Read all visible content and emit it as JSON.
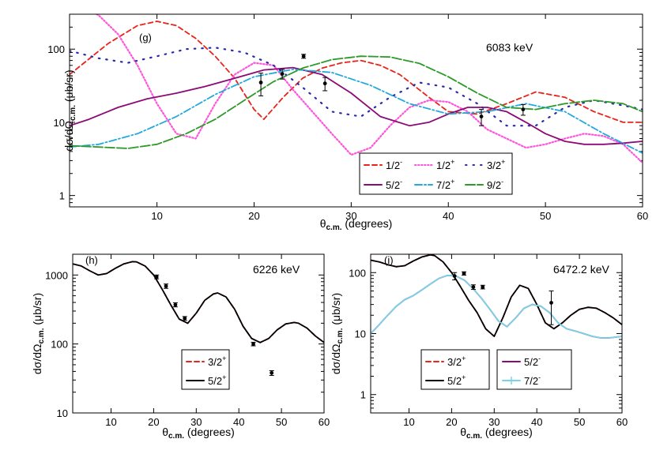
{
  "chart_data": [
    {
      "type": "line",
      "panel_label": "(g)",
      "annotation": "6083 keV",
      "xlabel_main": "θ",
      "xlabel_sub": "c.m.",
      "xlabel_tail": " (degrees)",
      "ylabel_main": "dσ/dΩ",
      "ylabel_sub": "c.m.",
      "ylabel_tail": " (μb/sr)",
      "xlim": [
        1,
        60
      ],
      "ylim": [
        0.7,
        300
      ],
      "yscale": "log",
      "xticks": [
        10,
        20,
        30,
        40,
        50,
        60
      ],
      "yticks": [
        1,
        10,
        100
      ],
      "legend_position": "lower-right",
      "legend_columns": 3,
      "series": [
        {
          "name": "1/2",
          "sup": "-",
          "color": "#e8231c",
          "style": "dashed",
          "x": [
            1,
            5,
            8,
            10,
            12,
            14,
            16,
            18,
            20,
            21,
            23,
            25,
            27,
            29,
            31,
            33,
            35,
            38,
            40,
            43,
            46,
            49,
            52,
            55,
            58,
            60
          ],
          "y": [
            45,
            120,
            210,
            240,
            210,
            140,
            80,
            40,
            15,
            11,
            22,
            40,
            55,
            65,
            70,
            60,
            45,
            22,
            14,
            13,
            18,
            26,
            22,
            14,
            10,
            10
          ]
        },
        {
          "name": "1/2",
          "sup": "+",
          "color": "#ff55dd",
          "style": "dotted",
          "x": [
            1,
            4,
            6,
            8,
            10,
            12,
            14,
            16,
            18,
            20,
            22,
            24,
            26,
            28,
            30,
            32,
            34,
            36,
            38,
            40,
            42,
            44,
            46,
            48,
            50,
            52,
            54,
            56,
            58,
            60
          ],
          "y": [
            500,
            290,
            160,
            60,
            18,
            7,
            6,
            18,
            45,
            65,
            60,
            28,
            14,
            7,
            3.6,
            4.5,
            9,
            16,
            20,
            19,
            14,
            8,
            6,
            4.5,
            5,
            6,
            7,
            6.5,
            5,
            2.8
          ]
        },
        {
          "name": "3/2",
          "sup": "+",
          "color": "#2a2aa8",
          "style": "sparse-dot",
          "x": [
            1,
            4,
            7,
            10,
            13,
            16,
            19,
            22,
            25,
            28,
            31,
            34,
            37,
            40,
            43,
            46,
            49,
            52,
            55,
            58,
            60
          ],
          "y": [
            95,
            75,
            65,
            80,
            100,
            105,
            90,
            60,
            30,
            14,
            12,
            22,
            35,
            30,
            18,
            9,
            9,
            16,
            20,
            17,
            15
          ]
        },
        {
          "name": "5/2",
          "sup": "-",
          "color": "#8b0a76",
          "style": "solid",
          "x": [
            1,
            3,
            6,
            9,
            12,
            15,
            18,
            21,
            24,
            27,
            30,
            33,
            36,
            38,
            40,
            42,
            44,
            46,
            48,
            50,
            52,
            54,
            56,
            58,
            60
          ],
          "y": [
            9,
            11,
            16,
            21,
            25,
            31,
            40,
            52,
            56,
            45,
            25,
            12,
            9,
            10,
            13,
            16,
            16,
            14,
            10,
            7,
            5.5,
            5,
            5,
            5.2,
            5.5
          ]
        },
        {
          "name": "7/2",
          "sup": "+",
          "color": "#22aadd",
          "style": "dashdot",
          "x": [
            1,
            4,
            8,
            12,
            16,
            20,
            24,
            28,
            32,
            36,
            40,
            44,
            48,
            52,
            56,
            60
          ],
          "y": [
            4.6,
            5,
            7,
            12,
            24,
            42,
            53,
            48,
            32,
            18,
            13,
            14,
            18,
            14,
            7,
            3.8
          ]
        },
        {
          "name": "9/2",
          "sup": "-",
          "color": "#2e9a2a",
          "style": "longdash",
          "x": [
            1,
            4,
            7,
            10,
            13,
            16,
            19,
            22,
            25,
            28,
            31,
            34,
            37,
            40,
            43,
            46,
            49,
            52,
            55,
            58,
            60
          ],
          "y": [
            4.8,
            4.6,
            4.4,
            5,
            7,
            11,
            20,
            36,
            55,
            72,
            80,
            78,
            64,
            42,
            25,
            16,
            15,
            18,
            20,
            18,
            14
          ]
        }
      ],
      "points": {
        "x": [
          20.7,
          22.9,
          25.1,
          27.3,
          43.4,
          47.7
        ],
        "y": [
          35,
          46,
          80,
          34,
          12,
          15
        ],
        "yerr": [
          12,
          7,
          5,
          7,
          3,
          2.5
        ]
      }
    },
    {
      "type": "line",
      "panel_label": "(h)",
      "annotation": "6226 keV",
      "xlabel_main": "θ",
      "xlabel_sub": "c.m.",
      "xlabel_tail": " (degrees)",
      "ylabel_main": "dσ/dΩ",
      "ylabel_sub": "c.m.",
      "ylabel_tail": " (μb/sr)",
      "xlim": [
        1,
        60
      ],
      "ylim": [
        10,
        2000
      ],
      "yscale": "log",
      "xticks": [
        10,
        20,
        30,
        40,
        50,
        60
      ],
      "yticks": [
        10,
        100,
        1000
      ],
      "legend_position": "lower-center",
      "legend_columns": 1,
      "series": [
        {
          "name": "3/2",
          "sup": "+",
          "color": "#e8231c",
          "style": "dashed",
          "x": [
            1,
            3,
            5,
            7,
            9,
            11,
            13,
            15,
            16,
            18,
            20,
            22,
            24,
            26,
            28,
            30,
            32,
            34,
            35,
            37,
            39,
            41,
            43,
            45,
            47,
            49,
            51,
            53,
            54,
            56,
            58,
            60
          ],
          "y": [
            1450,
            1350,
            1150,
            1000,
            1050,
            1250,
            1450,
            1560,
            1550,
            1350,
            1000,
            620,
            370,
            230,
            200,
            280,
            430,
            530,
            550,
            480,
            320,
            180,
            120,
            105,
            120,
            160,
            195,
            205,
            200,
            170,
            130,
            105
          ]
        },
        {
          "name": "5/2",
          "sup": "+",
          "color": "#000000",
          "style": "solid",
          "x": [
            1,
            3,
            5,
            7,
            9,
            11,
            13,
            15,
            16,
            18,
            20,
            22,
            24,
            26,
            28,
            30,
            32,
            34,
            35,
            37,
            39,
            41,
            43,
            45,
            47,
            49,
            51,
            53,
            54,
            56,
            58,
            60
          ],
          "y": [
            1450,
            1350,
            1150,
            1000,
            1050,
            1250,
            1450,
            1560,
            1550,
            1350,
            1000,
            620,
            370,
            230,
            200,
            280,
            430,
            530,
            550,
            480,
            320,
            180,
            120,
            105,
            120,
            160,
            195,
            205,
            200,
            170,
            130,
            105
          ]
        }
      ],
      "points": {
        "x": [
          20.7,
          22.9,
          25.1,
          27.3,
          43.4,
          47.7
        ],
        "y": [
          940,
          690,
          370,
          235,
          100,
          38
        ],
        "yerr": [
          60,
          50,
          25,
          15,
          6,
          3
        ]
      }
    },
    {
      "type": "line",
      "panel_label": "(i)",
      "annotation": "6472.2 keV",
      "xlabel_main": "θ",
      "xlabel_sub": "c.m.",
      "xlabel_tail": " (degrees)",
      "ylabel_main": "dσ/dΩ",
      "ylabel_sub": "c.m.",
      "ylabel_tail": " (μb/sr)",
      "xlim": [
        1,
        60
      ],
      "ylim": [
        0.5,
        200
      ],
      "yscale": "log",
      "xticks": [
        10,
        20,
        30,
        40,
        50,
        60
      ],
      "yticks": [
        1,
        10,
        100
      ],
      "legend_position": "lower-left",
      "legend_columns": 2,
      "series": [
        {
          "name": "3/2",
          "sup": "+",
          "color": "#e8231c",
          "style": "dashed",
          "x": [
            1,
            3,
            5,
            7,
            9,
            11,
            13,
            15,
            16,
            18,
            20,
            22,
            24,
            26,
            28,
            30,
            32,
            34,
            36,
            38,
            40,
            42,
            44,
            46,
            48,
            50,
            52,
            54,
            56,
            58,
            60
          ],
          "y": [
            160,
            150,
            135,
            125,
            130,
            155,
            180,
            195,
            190,
            150,
            100,
            60,
            35,
            22,
            12,
            9,
            18,
            40,
            62,
            55,
            30,
            15,
            12,
            15,
            20,
            25,
            27,
            26,
            22,
            18,
            14
          ]
        },
        {
          "name": "5/2",
          "sup": "+",
          "color": "#000000",
          "style": "solid",
          "x": [
            1,
            3,
            5,
            7,
            9,
            11,
            13,
            15,
            16,
            18,
            20,
            22,
            24,
            26,
            28,
            30,
            32,
            34,
            36,
            38,
            40,
            42,
            44,
            46,
            48,
            50,
            52,
            54,
            56,
            58,
            60
          ],
          "y": [
            160,
            150,
            135,
            125,
            130,
            155,
            180,
            195,
            190,
            150,
            100,
            60,
            35,
            22,
            12,
            9,
            18,
            40,
            62,
            55,
            30,
            15,
            12,
            15,
            20,
            25,
            27,
            26,
            22,
            18,
            14
          ]
        },
        {
          "name": "5/2",
          "sup": "-",
          "color": "#8b0a76",
          "style": "solid",
          "x": [
            1,
            3,
            5,
            7,
            9,
            11,
            13,
            15,
            17,
            19,
            21,
            23,
            25,
            27,
            29,
            31,
            33,
            35,
            37,
            39,
            41,
            43,
            45,
            47,
            49,
            51,
            53,
            55,
            57,
            60
          ],
          "y": [
            10,
            14,
            20,
            28,
            36,
            42,
            52,
            65,
            80,
            90,
            88,
            75,
            55,
            38,
            25,
            16,
            13,
            18,
            26,
            30,
            28,
            22,
            15,
            12,
            11,
            10,
            9,
            8.5,
            8.5,
            9
          ]
        },
        {
          "name": "7/2",
          "sup": "-",
          "color": "#7ad4e8",
          "style": "solid",
          "x": [
            1,
            3,
            5,
            7,
            9,
            11,
            13,
            15,
            17,
            19,
            21,
            23,
            25,
            27,
            29,
            31,
            33,
            35,
            37,
            39,
            41,
            43,
            45,
            47,
            49,
            51,
            53,
            55,
            57,
            60
          ],
          "y": [
            10,
            14,
            20,
            28,
            36,
            42,
            52,
            65,
            80,
            90,
            88,
            75,
            55,
            38,
            25,
            16,
            13,
            18,
            26,
            30,
            28,
            22,
            15,
            12,
            11,
            10,
            9,
            8.5,
            8.5,
            9
          ]
        }
      ],
      "points": {
        "x": [
          20.7,
          22.9,
          25.1,
          27.3,
          43.4
        ],
        "y": [
          88,
          97,
          58,
          58,
          32
        ],
        "yerr": [
          12,
          6,
          5,
          4,
          18
        ]
      }
    }
  ]
}
